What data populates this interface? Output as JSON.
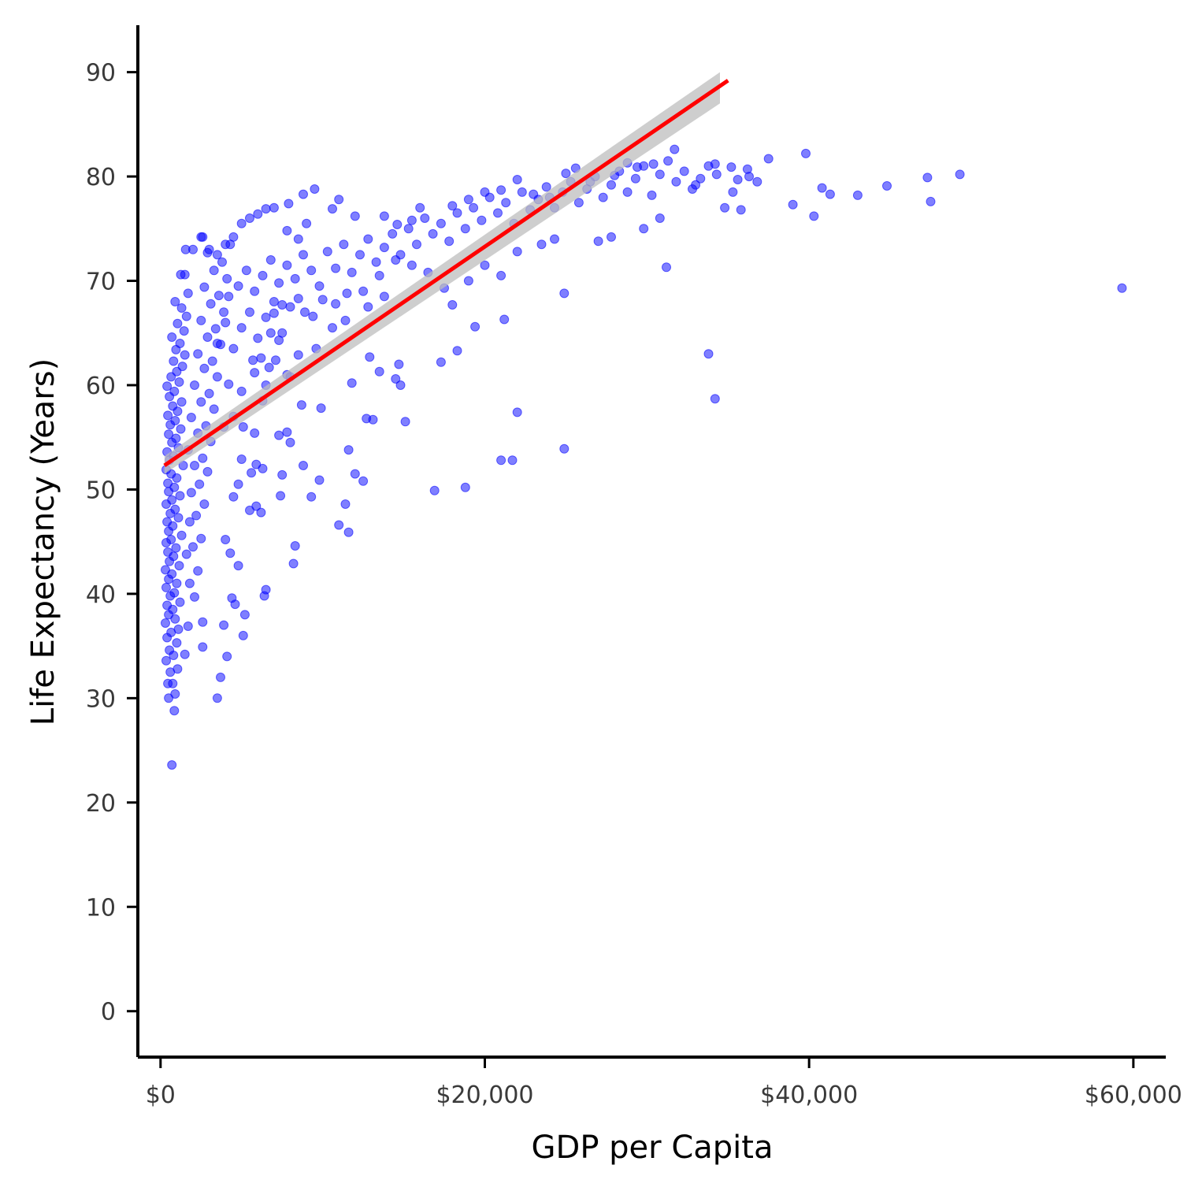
{
  "chart_data": {
    "type": "scatter",
    "title": "",
    "xlabel": "GDP per Capita",
    "ylabel": "Life Expectancy (Years)",
    "xlim": [
      -1400,
      62000
    ],
    "ylim": [
      -4.4,
      94.5
    ],
    "x_ticks": [
      0,
      20000,
      40000,
      60000
    ],
    "x_tick_labels": [
      "$0",
      "$20,000",
      "$40,000",
      "$60,000"
    ],
    "y_ticks": [
      0,
      10,
      20,
      30,
      40,
      50,
      60,
      70,
      80,
      90
    ],
    "y_tick_labels": [
      "0",
      "10",
      "20",
      "30",
      "40",
      "50",
      "60",
      "70",
      "80",
      "90"
    ],
    "grid": false,
    "legend": "none",
    "colors": {
      "points": "#0000ff",
      "fit_line": "#ff0000",
      "confidence_band": "#bdbdbd",
      "axis": "#000000",
      "tick_label": "#3a3a3a"
    },
    "point_opacity": 0.5,
    "fit_line": {
      "x": [
        241,
        35000
      ],
      "y": [
        52.3,
        89.2
      ]
    },
    "confidence_band": {
      "x": [
        241,
        34500
      ],
      "lower": [
        51.5,
        87.0
      ],
      "upper": [
        53.2,
        90.0
      ]
    },
    "points": [
      [
        700,
        23.6
      ],
      [
        850,
        28.8
      ],
      [
        500,
        30.0
      ],
      [
        900,
        30.4
      ],
      [
        450,
        31.4
      ],
      [
        750,
        31.4
      ],
      [
        600,
        32.5
      ],
      [
        1050,
        32.8
      ],
      [
        350,
        33.6
      ],
      [
        800,
        34.1
      ],
      [
        550,
        34.6
      ],
      [
        1000,
        35.3
      ],
      [
        400,
        35.8
      ],
      [
        650,
        36.3
      ],
      [
        1100,
        36.6
      ],
      [
        300,
        37.2
      ],
      [
        900,
        37.6
      ],
      [
        500,
        38.0
      ],
      [
        750,
        38.5
      ],
      [
        400,
        38.9
      ],
      [
        1200,
        39.2
      ],
      [
        600,
        39.8
      ],
      [
        850,
        40.1
      ],
      [
        350,
        40.6
      ],
      [
        1000,
        41.0
      ],
      [
        500,
        41.4
      ],
      [
        700,
        41.9
      ],
      [
        300,
        42.3
      ],
      [
        1150,
        42.7
      ],
      [
        550,
        43.1
      ],
      [
        800,
        43.6
      ],
      [
        450,
        44.0
      ],
      [
        950,
        44.4
      ],
      [
        350,
        44.9
      ],
      [
        650,
        45.2
      ],
      [
        1300,
        45.6
      ],
      [
        500,
        46.0
      ],
      [
        750,
        46.5
      ],
      [
        400,
        46.9
      ],
      [
        1100,
        47.3
      ],
      [
        600,
        47.7
      ],
      [
        900,
        48.1
      ],
      [
        350,
        48.6
      ],
      [
        700,
        49.0
      ],
      [
        1200,
        49.4
      ],
      [
        500,
        49.8
      ],
      [
        850,
        50.2
      ],
      [
        450,
        50.6
      ],
      [
        1000,
        51.1
      ],
      [
        650,
        51.5
      ],
      [
        350,
        51.9
      ],
      [
        1400,
        52.3
      ],
      [
        550,
        52.8
      ],
      [
        800,
        53.2
      ],
      [
        400,
        53.6
      ],
      [
        1100,
        54.0
      ],
      [
        700,
        54.5
      ],
      [
        950,
        54.9
      ],
      [
        500,
        55.3
      ],
      [
        1250,
        55.8
      ],
      [
        600,
        56.2
      ],
      [
        900,
        56.6
      ],
      [
        450,
        57.1
      ],
      [
        1050,
        57.5
      ],
      [
        750,
        58.0
      ],
      [
        1300,
        58.4
      ],
      [
        550,
        58.9
      ],
      [
        850,
        59.4
      ],
      [
        400,
        59.9
      ],
      [
        1150,
        60.3
      ],
      [
        650,
        60.8
      ],
      [
        1000,
        61.3
      ],
      [
        1350,
        61.8
      ],
      [
        800,
        62.3
      ],
      [
        1500,
        62.9
      ],
      [
        950,
        63.4
      ],
      [
        1200,
        64.0
      ],
      [
        700,
        64.6
      ],
      [
        1450,
        65.2
      ],
      [
        1050,
        65.9
      ],
      [
        1600,
        66.6
      ],
      [
        1300,
        67.4
      ],
      [
        900,
        68.0
      ],
      [
        1700,
        68.8
      ],
      [
        1250,
        70.6
      ],
      [
        1550,
        73.0
      ],
      [
        1500,
        34.2
      ],
      [
        1700,
        36.9
      ],
      [
        2100,
        39.7
      ],
      [
        1800,
        41.0
      ],
      [
        2300,
        42.2
      ],
      [
        1600,
        43.8
      ],
      [
        2000,
        44.5
      ],
      [
        2500,
        45.3
      ],
      [
        1800,
        46.9
      ],
      [
        2200,
        47.5
      ],
      [
        2700,
        48.6
      ],
      [
        1900,
        49.7
      ],
      [
        2400,
        50.5
      ],
      [
        2900,
        51.7
      ],
      [
        2100,
        52.3
      ],
      [
        2600,
        53.0
      ],
      [
        1700,
        53.8
      ],
      [
        3100,
        54.6
      ],
      [
        2300,
        55.4
      ],
      [
        2800,
        56.1
      ],
      [
        1900,
        56.9
      ],
      [
        3300,
        57.7
      ],
      [
        2500,
        58.4
      ],
      [
        3000,
        59.2
      ],
      [
        2100,
        60.0
      ],
      [
        3500,
        60.8
      ],
      [
        2700,
        61.6
      ],
      [
        3200,
        62.3
      ],
      [
        2300,
        63.0
      ],
      [
        3700,
        63.9
      ],
      [
        2900,
        64.6
      ],
      [
        3400,
        65.4
      ],
      [
        2500,
        66.2
      ],
      [
        3900,
        67.0
      ],
      [
        3100,
        67.8
      ],
      [
        3600,
        68.6
      ],
      [
        2700,
        69.4
      ],
      [
        4100,
        70.2
      ],
      [
        3300,
        71.0
      ],
      [
        3800,
        71.8
      ],
      [
        2900,
        72.7
      ],
      [
        4300,
        73.5
      ],
      [
        2600,
        74.2
      ],
      [
        2600,
        37.3
      ],
      [
        2600,
        34.9
      ],
      [
        3500,
        30.0
      ],
      [
        3700,
        32.0
      ],
      [
        3900,
        37.0
      ],
      [
        4100,
        34.0
      ],
      [
        4400,
        39.6
      ],
      [
        4600,
        39.0
      ],
      [
        5100,
        36.0
      ],
      [
        5200,
        38.0
      ],
      [
        5500,
        48.0
      ],
      [
        5900,
        48.4
      ],
      [
        6200,
        47.8
      ],
      [
        6400,
        39.8
      ],
      [
        6500,
        40.4
      ],
      [
        4300,
        43.9
      ],
      [
        4000,
        45.2
      ],
      [
        4800,
        42.7
      ],
      [
        4500,
        49.3
      ],
      [
        4800,
        50.5
      ],
      [
        5000,
        52.9
      ],
      [
        5600,
        51.6
      ],
      [
        5900,
        52.4
      ],
      [
        6300,
        52.0
      ],
      [
        7400,
        49.4
      ],
      [
        7500,
        51.4
      ],
      [
        8200,
        42.9
      ],
      [
        8300,
        44.6
      ],
      [
        8800,
        52.3
      ],
      [
        9300,
        49.3
      ],
      [
        9800,
        50.9
      ],
      [
        3900,
        56.0
      ],
      [
        4500,
        57.0
      ],
      [
        5100,
        56.0
      ],
      [
        5800,
        55.4
      ],
      [
        6300,
        58.5
      ],
      [
        7300,
        55.2
      ],
      [
        7800,
        55.5
      ],
      [
        8000,
        54.5
      ],
      [
        8700,
        58.1
      ],
      [
        9900,
        57.8
      ],
      [
        11600,
        53.8
      ],
      [
        12000,
        51.5
      ],
      [
        12500,
        50.8
      ],
      [
        11400,
        48.6
      ],
      [
        11000,
        46.6
      ],
      [
        11600,
        45.9
      ],
      [
        16900,
        49.9
      ],
      [
        18800,
        50.2
      ],
      [
        21000,
        52.8
      ],
      [
        21700,
        52.8
      ],
      [
        24900,
        53.9
      ],
      [
        4200,
        60.1
      ],
      [
        5000,
        59.4
      ],
      [
        5800,
        61.2
      ],
      [
        6500,
        60.0
      ],
      [
        7100,
        62.4
      ],
      [
        7800,
        61.0
      ],
      [
        8500,
        62.9
      ],
      [
        9600,
        63.5
      ],
      [
        10600,
        65.5
      ],
      [
        11400,
        66.2
      ],
      [
        11800,
        60.2
      ],
      [
        12700,
        56.8
      ],
      [
        13100,
        56.7
      ],
      [
        12900,
        62.7
      ],
      [
        13500,
        61.3
      ],
      [
        14500,
        60.6
      ],
      [
        14700,
        62.0
      ],
      [
        14800,
        60.0
      ],
      [
        15100,
        56.5
      ],
      [
        17300,
        62.2
      ],
      [
        18300,
        63.3
      ],
      [
        19400,
        65.6
      ],
      [
        21200,
        66.3
      ],
      [
        22000,
        57.4
      ],
      [
        24900,
        68.8
      ],
      [
        33800,
        63.0
      ],
      [
        34200,
        58.7
      ],
      [
        31200,
        71.3
      ],
      [
        59300,
        69.3
      ],
      [
        3500,
        64.0
      ],
      [
        4000,
        66.0
      ],
      [
        4500,
        63.5
      ],
      [
        5000,
        65.5
      ],
      [
        5500,
        67.0
      ],
      [
        6000,
        64.5
      ],
      [
        6500,
        66.5
      ],
      [
        7000,
        68.0
      ],
      [
        7500,
        65.0
      ],
      [
        8000,
        67.5
      ],
      [
        4200,
        68.5
      ],
      [
        4800,
        69.5
      ],
      [
        5300,
        71.0
      ],
      [
        5800,
        69.0
      ],
      [
        6300,
        70.5
      ],
      [
        6800,
        72.0
      ],
      [
        7300,
        69.8
      ],
      [
        7800,
        71.5
      ],
      [
        8300,
        70.2
      ],
      [
        8800,
        72.5
      ],
      [
        9300,
        71.0
      ],
      [
        9800,
        69.5
      ],
      [
        10300,
        72.8
      ],
      [
        10800,
        71.2
      ],
      [
        11300,
        73.5
      ],
      [
        11800,
        70.8
      ],
      [
        12300,
        72.5
      ],
      [
        12800,
        74.0
      ],
      [
        13300,
        71.8
      ],
      [
        13800,
        73.2
      ],
      [
        14300,
        74.5
      ],
      [
        14800,
        72.5
      ],
      [
        15300,
        75.0
      ],
      [
        15800,
        73.5
      ],
      [
        16300,
        76.0
      ],
      [
        16800,
        74.5
      ],
      [
        17300,
        75.5
      ],
      [
        17800,
        73.8
      ],
      [
        18300,
        76.5
      ],
      [
        18800,
        75.0
      ],
      [
        19300,
        77.0
      ],
      [
        19800,
        75.8
      ],
      [
        20300,
        78.0
      ],
      [
        20800,
        76.5
      ],
      [
        21300,
        77.5
      ],
      [
        21800,
        75.5
      ],
      [
        22300,
        78.5
      ],
      [
        22800,
        76.8
      ],
      [
        23300,
        77.8
      ],
      [
        23800,
        79.0
      ],
      [
        24300,
        77.0
      ],
      [
        24800,
        78.5
      ],
      [
        25300,
        79.5
      ],
      [
        25800,
        77.5
      ],
      [
        26300,
        78.8
      ],
      [
        26800,
        80.0
      ],
      [
        27300,
        78.0
      ],
      [
        27800,
        79.2
      ],
      [
        28300,
        80.5
      ],
      [
        28800,
        78.5
      ],
      [
        29300,
        79.8
      ],
      [
        29800,
        81.0
      ],
      [
        30300,
        78.2
      ],
      [
        30800,
        80.2
      ],
      [
        31300,
        81.5
      ],
      [
        31800,
        79.5
      ],
      [
        32300,
        80.5
      ],
      [
        32800,
        78.8
      ],
      [
        33300,
        79.8
      ],
      [
        33800,
        81.0
      ],
      [
        34300,
        80.2
      ],
      [
        34800,
        77.0
      ],
      [
        35300,
        78.5
      ],
      [
        35800,
        76.8
      ],
      [
        36300,
        80.0
      ],
      [
        36800,
        79.5
      ],
      [
        37500,
        81.7
      ],
      [
        39000,
        77.3
      ],
      [
        39800,
        82.2
      ],
      [
        40300,
        76.2
      ],
      [
        40800,
        78.9
      ],
      [
        41300,
        78.3
      ],
      [
        43000,
        78.2
      ],
      [
        44800,
        79.1
      ],
      [
        47300,
        79.9
      ],
      [
        47500,
        77.6
      ],
      [
        49300,
        80.2
      ],
      [
        27800,
        74.2
      ],
      [
        27000,
        73.8
      ],
      [
        29800,
        75.0
      ],
      [
        30800,
        76.0
      ],
      [
        24300,
        74.0
      ],
      [
        23500,
        73.5
      ],
      [
        22000,
        72.8
      ],
      [
        21000,
        70.5
      ],
      [
        20000,
        71.5
      ],
      [
        19000,
        70.0
      ],
      [
        18000,
        67.7
      ],
      [
        17500,
        69.3
      ],
      [
        16500,
        70.8
      ],
      [
        15500,
        71.5
      ],
      [
        14500,
        72.0
      ],
      [
        13500,
        70.5
      ],
      [
        12800,
        67.5
      ],
      [
        13800,
        68.5
      ],
      [
        12500,
        69.0
      ],
      [
        11500,
        68.8
      ],
      [
        10800,
        67.8
      ],
      [
        10000,
        68.2
      ],
      [
        9400,
        66.6
      ],
      [
        8900,
        67.0
      ],
      [
        8500,
        68.3
      ],
      [
        7500,
        67.7
      ],
      [
        7000,
        66.9
      ],
      [
        6800,
        65.0
      ],
      [
        6200,
        62.6
      ],
      [
        5700,
        62.4
      ],
      [
        6700,
        61.7
      ],
      [
        7300,
        64.3
      ],
      [
        8000,
        60.8
      ],
      [
        7800,
        74.8
      ],
      [
        8500,
        74.0
      ],
      [
        9000,
        75.5
      ],
      [
        9500,
        78.8
      ],
      [
        8800,
        78.3
      ],
      [
        7900,
        77.4
      ],
      [
        7000,
        77.0
      ],
      [
        6500,
        76.9
      ],
      [
        6000,
        76.4
      ],
      [
        5500,
        76.0
      ],
      [
        5000,
        75.5
      ],
      [
        4500,
        74.2
      ],
      [
        4000,
        73.5
      ],
      [
        3500,
        72.5
      ],
      [
        3000,
        73.0
      ],
      [
        2500,
        74.2
      ],
      [
        2000,
        73.0
      ],
      [
        1500,
        70.6
      ],
      [
        11000,
        77.8
      ],
      [
        10600,
        76.9
      ],
      [
        12000,
        76.2
      ],
      [
        13800,
        76.2
      ],
      [
        14600,
        75.4
      ],
      [
        15500,
        75.8
      ],
      [
        16000,
        77.0
      ],
      [
        18000,
        77.2
      ],
      [
        19000,
        77.8
      ],
      [
        20000,
        78.5
      ],
      [
        21000,
        78.7
      ],
      [
        22000,
        79.7
      ],
      [
        23000,
        78.3
      ],
      [
        24000,
        78.0
      ],
      [
        25000,
        80.3
      ],
      [
        25600,
        80.8
      ],
      [
        26500,
        79.5
      ],
      [
        28000,
        80.1
      ],
      [
        28800,
        81.3
      ],
      [
        29400,
        80.9
      ],
      [
        30400,
        81.2
      ],
      [
        31700,
        82.6
      ],
      [
        33000,
        79.2
      ],
      [
        34200,
        81.2
      ],
      [
        35200,
        80.9
      ],
      [
        35600,
        79.7
      ],
      [
        36200,
        80.7
      ]
    ]
  }
}
